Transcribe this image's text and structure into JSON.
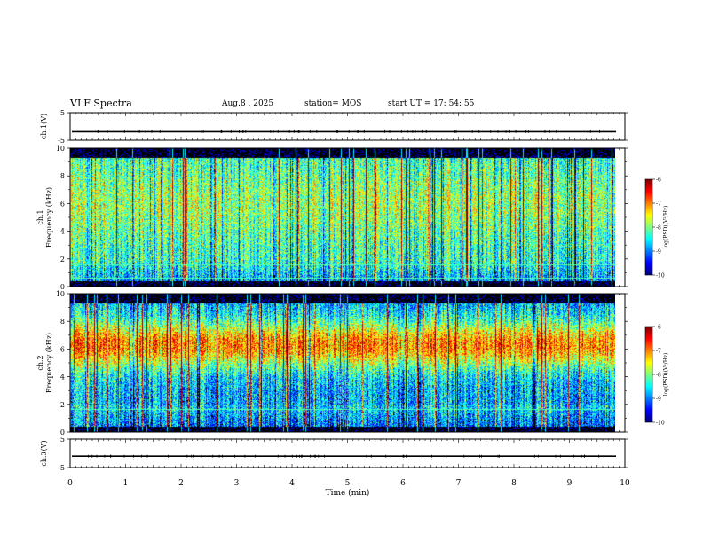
{
  "header": {
    "title": "VLF Spectra",
    "date": "Aug.8 , 2025",
    "station": "station= MOS",
    "start_ut": "start  UT =   17: 54: 55"
  },
  "colorbar": {
    "ticks": [
      "-6",
      "-7",
      "-8",
      "-9",
      "-10"
    ],
    "label": "log(PSD)(V²/Hz)"
  },
  "chart_data": [
    {
      "type": "line",
      "name": "ch1-waveform",
      "ylabel": "ch.1(V)",
      "ylim": [
        -5,
        5
      ],
      "yticks": [
        "5",
        "-5"
      ],
      "baseline": -1.9,
      "xlim": [
        0,
        10
      ]
    },
    {
      "type": "heatmap",
      "name": "ch1-spectrogram",
      "ylabel_top": "ch.1",
      "ylabel_bottom": "Frequency (kHz)",
      "ylim": [
        0,
        10
      ],
      "yticks": [
        "0",
        "2",
        "4",
        "6",
        "8",
        "10"
      ],
      "xlim": [
        0,
        10
      ],
      "data_end_min": 9.83,
      "zlim": [
        -10,
        -6
      ],
      "horizontal_lines_khz": [
        0.55,
        1.55
      ]
    },
    {
      "type": "heatmap",
      "name": "ch2-spectrogram",
      "ylabel_top": "ch.2",
      "ylabel_bottom": "Frequency (kHz)",
      "ylim": [
        0,
        10
      ],
      "yticks": [
        "0",
        "2",
        "4",
        "6",
        "8",
        "10"
      ],
      "xlim": [
        0,
        10
      ],
      "data_end_min": 9.83,
      "zlim": [
        -10,
        -6
      ],
      "horizontal_lines_khz": [
        1.6
      ]
    },
    {
      "type": "line",
      "name": "ch3-waveform",
      "ylabel": "ch.3(V)",
      "ylim": [
        -5,
        5
      ],
      "yticks": [
        "5",
        "-5"
      ],
      "baseline": -1.0,
      "xlim": [
        0,
        10
      ],
      "xlabel": "Time  (min)",
      "xticks": [
        "0",
        "1",
        "2",
        "3",
        "4",
        "5",
        "6",
        "7",
        "8",
        "9",
        "10"
      ]
    }
  ]
}
